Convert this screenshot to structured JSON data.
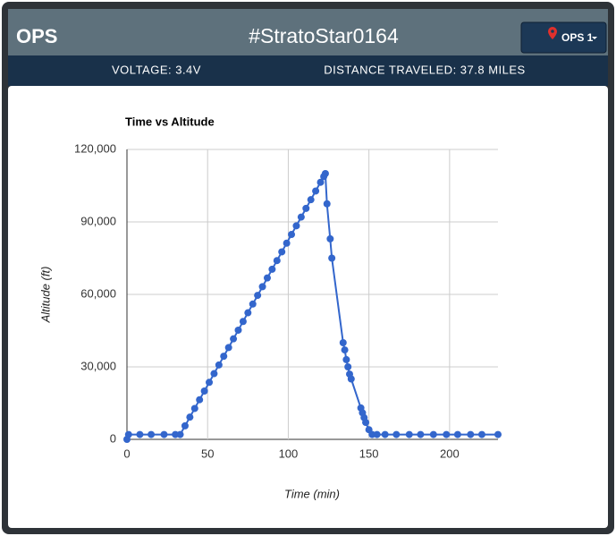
{
  "header": {
    "title": "OPS",
    "device": "#StratoStar0164",
    "button": "OPS 1"
  },
  "status": {
    "voltage": "VOLTAGE: 3.4V",
    "distance": "DISTANCE TRAVELED: 37.8 MILES"
  },
  "chart_data": {
    "type": "scatter-line",
    "title": "Time vs Altitude",
    "x_label": "Time (min)",
    "y_label": "Altitude (ft)",
    "color": "#3366cc",
    "grid": true,
    "xlim": [
      0,
      230
    ],
    "xticks": [
      0,
      50,
      100,
      150,
      200
    ],
    "ylim": [
      0,
      120000
    ],
    "yticks": [
      0,
      {
        "value": 30000,
        "label": "30,000"
      },
      {
        "value": 60000,
        "label": "60,000"
      },
      {
        "value": 90000,
        "label": "90,000"
      },
      {
        "value": 120000,
        "label": "120,000"
      }
    ],
    "series": [
      {
        "name": "Altitude",
        "x": [
          0,
          1,
          8,
          15,
          23,
          30,
          33,
          36,
          39,
          42,
          45,
          48,
          51,
          54,
          57,
          60,
          63,
          66,
          69,
          72,
          75,
          78,
          81,
          84,
          87,
          90,
          93,
          96,
          99,
          102,
          105,
          108,
          111,
          114,
          117,
          120,
          122,
          123,
          124,
          126,
          127,
          134,
          135,
          136,
          137,
          138,
          139,
          145,
          146,
          147,
          148,
          150,
          152,
          155,
          160,
          167,
          175,
          182,
          190,
          198,
          205,
          213,
          220,
          230
        ],
        "values": [
          0,
          2000,
          2000,
          2000,
          2000,
          2000,
          2000,
          5600,
          9200,
          12800,
          16400,
          20000,
          23600,
          27200,
          30800,
          34400,
          38000,
          41600,
          45200,
          48800,
          52400,
          56000,
          59600,
          63200,
          66800,
          70400,
          74000,
          77600,
          81200,
          84800,
          88400,
          92000,
          95600,
          99200,
          102800,
          106400,
          108800,
          110000,
          97500,
          83000,
          75000,
          40000,
          37000,
          33000,
          30000,
          27000,
          25000,
          13000,
          11000,
          9000,
          7000,
          4000,
          2000,
          2000,
          2000,
          2000,
          2000,
          2000,
          2000,
          2000,
          2000,
          2000,
          2000,
          2000
        ]
      }
    ]
  }
}
